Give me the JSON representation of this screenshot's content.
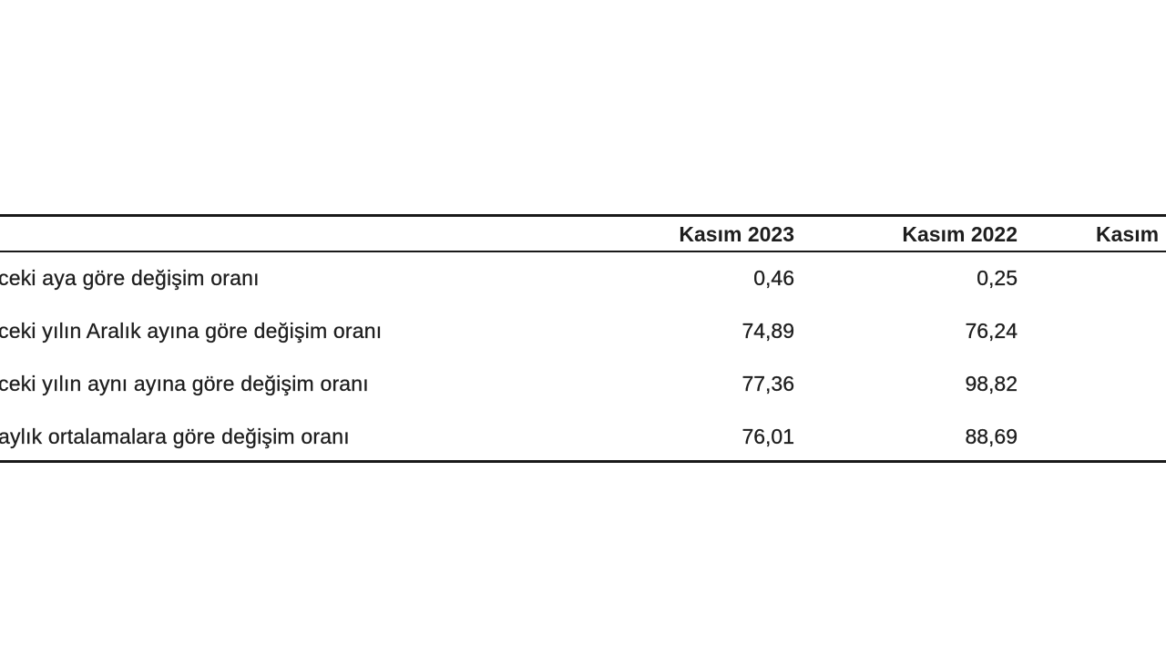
{
  "table": {
    "headers": [
      "",
      "Kasım 2023",
      "Kasım 2022",
      "Kasım"
    ],
    "rows": [
      {
        "label": "ceki aya göre değişim oranı",
        "values": [
          "0,46",
          "0,25"
        ]
      },
      {
        "label": "ceki yılın Aralık ayına göre değişim oranı",
        "values": [
          "74,89",
          "76,24"
        ]
      },
      {
        "label": "ceki yılın aynı ayına göre değişim oranı",
        "values": [
          "77,36",
          "98,82"
        ]
      },
      {
        "label": "aylık ortalamalara göre değişim oranı",
        "values": [
          "76,01",
          "88,69"
        ]
      }
    ]
  }
}
